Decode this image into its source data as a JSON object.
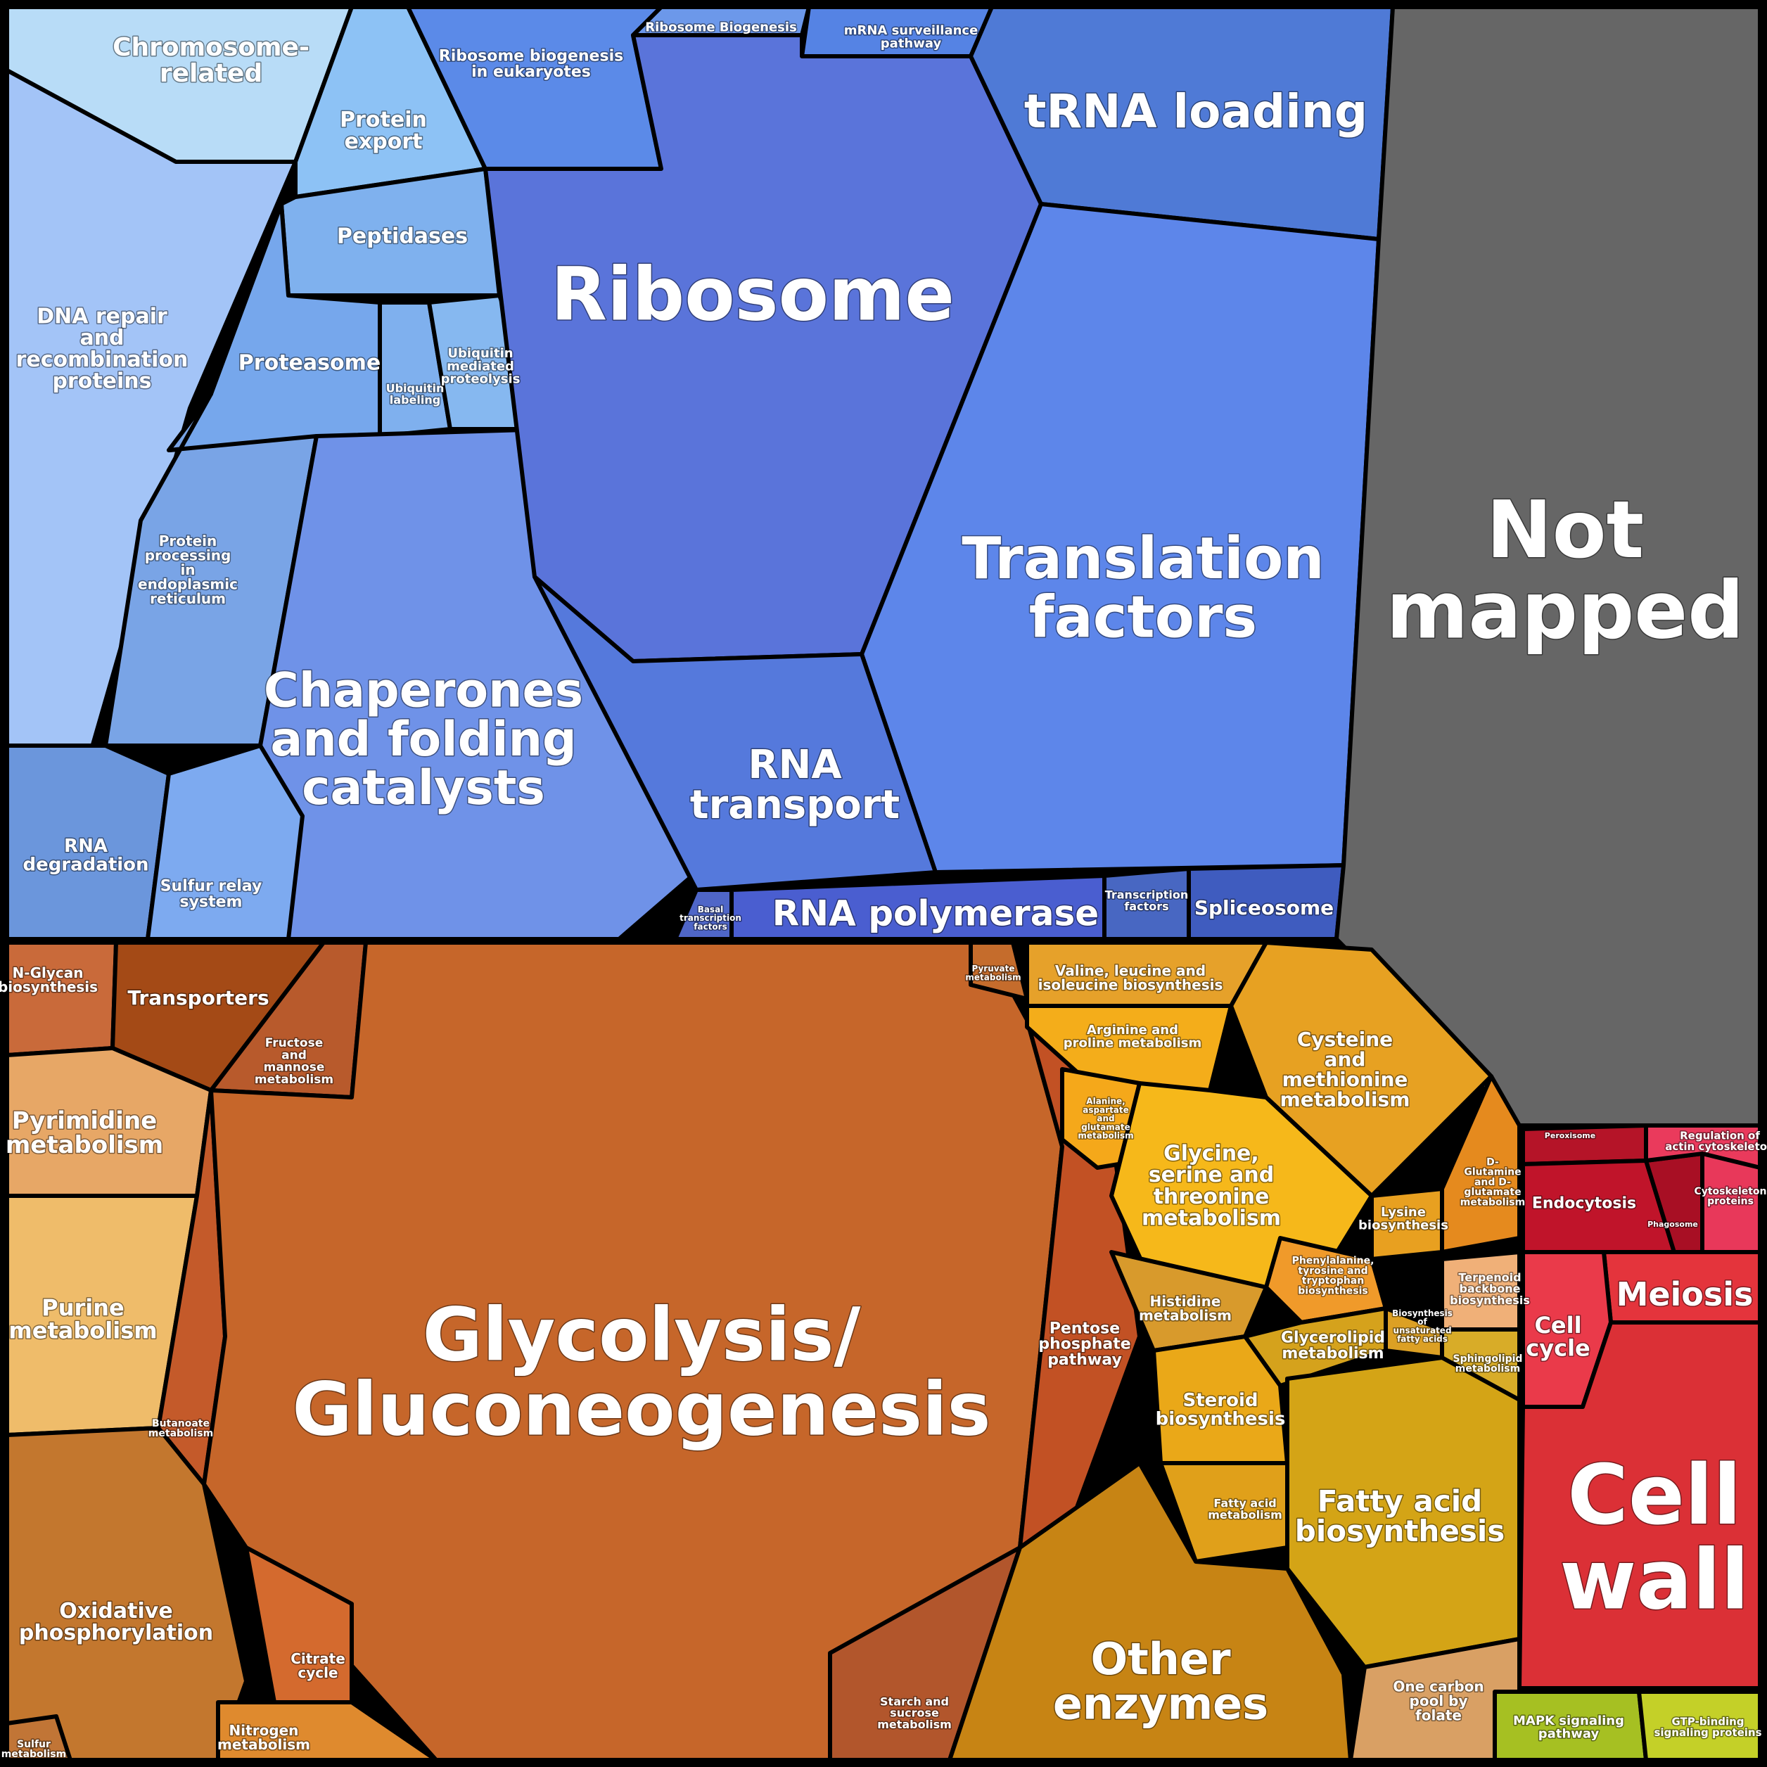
{
  "colors": {
    "genetic_information": "#5b7fe6",
    "cellular_processes_structural": "#8fb6f4",
    "metabolism_carbohydrate": "#c96a2c",
    "metabolism_amino_acid": "#f0a624",
    "metabolism_lipid": "#d9a51e",
    "cell_structure": "#dd3a42",
    "signaling": "#a8c02a",
    "not_mapped": "#666666",
    "border": "#000000"
  },
  "regions": [
    {
      "id": "chromosome",
      "label": "Chromosome-\nrelated",
      "color": "#b8dcf7"
    },
    {
      "id": "dna-repair",
      "label": "DNA repair\nand\nrecombination\nproteins",
      "color": "#a3c4f7"
    },
    {
      "id": "protein-export",
      "label": "Protein\nexport",
      "color": "#8dc2f5"
    },
    {
      "id": "peptidases",
      "label": "Peptidases",
      "color": "#7fb1ee"
    },
    {
      "id": "proteasome",
      "label": "Proteasome",
      "color": "#76a7ec"
    },
    {
      "id": "ubiquitin-labeling",
      "label": "Ubiquitin\nlabeling",
      "color": "#7fb0ee"
    },
    {
      "id": "ubiquitin-proteolysis",
      "label": "Ubiquitin\nmediated\nproteolysis",
      "color": "#86b8f0"
    },
    {
      "id": "protein-processing",
      "label": "Protein\nprocessing\nin\nendoplasmic\nreticulum",
      "color": "#79a4e6"
    },
    {
      "id": "chaperones",
      "label": "Chaperones\nand folding\ncatalysts",
      "color": "#6f92e8"
    },
    {
      "id": "rna-degradation",
      "label": "RNA\ndegradation",
      "color": "#6b96dc"
    },
    {
      "id": "sulfur-relay",
      "label": "Sulfur relay\nsystem",
      "color": "#7daaf0"
    },
    {
      "id": "ribosome-biogenesis-euk",
      "label": "Ribosome biogenesis\nin eukaryotes",
      "color": "#5b8ae8"
    },
    {
      "id": "ribosome-biogenesis",
      "label": "Ribosome Biogenesis",
      "color": "#6c98ea"
    },
    {
      "id": "mrna-surveillance",
      "label": "mRNA surveillance\npathway",
      "color": "#5583e4"
    },
    {
      "id": "ribosome",
      "label": "Ribosome",
      "color": "#5a74da"
    },
    {
      "id": "trna-loading",
      "label": "tRNA loading",
      "color": "#4f7ad6"
    },
    {
      "id": "translation-factors",
      "label": "Translation\nfactors",
      "color": "#5d86ea"
    },
    {
      "id": "rna-transport",
      "label": "RNA\ntransport",
      "color": "#5579dc"
    },
    {
      "id": "basal-tf",
      "label": "Basal\ntranscription\nfactors",
      "color": "#4f66c8"
    },
    {
      "id": "rna-polymerase",
      "label": "RNA polymerase",
      "color": "#4a5ed0"
    },
    {
      "id": "transcription-factors",
      "label": "Transcription\nfactors",
      "color": "#4867c2"
    },
    {
      "id": "spliceosome",
      "label": "Spliceosome",
      "color": "#3f5cbf"
    },
    {
      "id": "not-mapped",
      "label": "Not\nmapped",
      "color": "#666666"
    },
    {
      "id": "n-glycan",
      "label": "N-Glycan\nbiosynthesis",
      "color": "#c96a3a"
    },
    {
      "id": "transporters",
      "label": "Transporters",
      "color": "#a44a16"
    },
    {
      "id": "fructose",
      "label": "Fructose\nand\nmannose\nmetabolism",
      "color": "#b85a2c"
    },
    {
      "id": "pyrimidine",
      "label": "Pyrimidine\nmetabolism",
      "color": "#e7a766"
    },
    {
      "id": "purine",
      "label": "Purine\nmetabolism",
      "color": "#efbc6a"
    },
    {
      "id": "butanoate",
      "label": "Butanoate\nmetabolism",
      "color": "#c45a2a"
    },
    {
      "id": "oxidative",
      "label": "Oxidative\nphosphorylation",
      "color": "#c3772e"
    },
    {
      "id": "sulfur-metabolism",
      "label": "Sulfur\nmetabolism",
      "color": "#c17536"
    },
    {
      "id": "glycolysis",
      "label": "Glycolysis/\nGluconeogenesis",
      "color": "#c6662a"
    },
    {
      "id": "citrate",
      "label": "Citrate\ncycle",
      "color": "#d46a2e"
    },
    {
      "id": "nitrogen",
      "label": "Nitrogen\nmetabolism",
      "color": "#df8a2e"
    },
    {
      "id": "starch",
      "label": "Starch and\nsucrose\nmetabolism",
      "color": "#b2562c"
    },
    {
      "id": "pyruvate",
      "label": "Pyruvate\nmetabolism",
      "color": "#c56c2c"
    },
    {
      "id": "pentose",
      "label": "Pentose\nphosphate\npathway",
      "color": "#c25124"
    },
    {
      "id": "valine",
      "label": "Valine, leucine and\nisoleucine biosynthesis",
      "color": "#e6a12a"
    },
    {
      "id": "arginine",
      "label": "Arginine and\nproline metabolism",
      "color": "#f4ad1a"
    },
    {
      "id": "alanine",
      "label": "Alanine,\naspartate\nand\nglutamate\nmetabolism",
      "color": "#f5a81a"
    },
    {
      "id": "cysteine",
      "label": "Cysteine\nand\nmethionine\nmetabolism",
      "color": "#e7a122"
    },
    {
      "id": "glycine",
      "label": "Glycine,\nserine and\nthreonine\nmetabolism",
      "color": "#f6b81a"
    },
    {
      "id": "lysine",
      "label": "Lysine\nbiosynthesis",
      "color": "#e8a020"
    },
    {
      "id": "d-glutamine",
      "label": "D-\nGlutamine\nand D-\nglutamate\nmetabolism",
      "color": "#e58a1e"
    },
    {
      "id": "phenylalanine",
      "label": "Phenylalanine,\ntyrosine and\ntryptophan\nbiosynthesis",
      "color": "#f09a2a"
    },
    {
      "id": "histidine",
      "label": "Histidine\nmetabolism",
      "color": "#d89a2c"
    },
    {
      "id": "terpenoid",
      "label": "Terpenoid\nbackbone\nbiosynthesis",
      "color": "#f0b078"
    },
    {
      "id": "unsaturated",
      "label": "Biosynthesis\nof\nunsaturated\nfatty acids",
      "color": "#dca024"
    },
    {
      "id": "glycerolipid",
      "label": "Glycerolipid\nmetabolism",
      "color": "#d5a21c"
    },
    {
      "id": "sphingolipid",
      "label": "Sphingolipid\nmetabolism",
      "color": "#d8ac28"
    },
    {
      "id": "steroid",
      "label": "Steroid\nbiosynthesis",
      "color": "#eaa818"
    },
    {
      "id": "fatty-acid-metabolism",
      "label": "Fatty acid\nmetabolism",
      "color": "#e0a01a"
    },
    {
      "id": "fatty-acid-biosynthesis",
      "label": "Fatty acid\nbiosynthesis",
      "color": "#d4a416"
    },
    {
      "id": "other-enzymes",
      "label": "Other\nenzymes",
      "color": "#c78414"
    },
    {
      "id": "one-carbon",
      "label": "One carbon\npool by\nfolate",
      "color": "#d9a064"
    },
    {
      "id": "peroxisome",
      "label": "Peroxisome",
      "color": "#b51428"
    },
    {
      "id": "endocytosis",
      "label": "Endocytosis",
      "color": "#c0142a"
    },
    {
      "id": "phagosome",
      "label": "Phagosome",
      "color": "#a80f24"
    },
    {
      "id": "actin",
      "label": "Regulation of\nactin cytoskeleton",
      "color": "#ea3a5c"
    },
    {
      "id": "cytoskeleton",
      "label": "Cytoskeleton\nproteins",
      "color": "#e8385a"
    },
    {
      "id": "meiosis",
      "label": "Meiosis",
      "color": "#e4343c"
    },
    {
      "id": "cell-cycle",
      "label": "Cell\ncycle",
      "color": "#ea3a4a"
    },
    {
      "id": "cell-wall",
      "label": "Cell\nwall",
      "color": "#db3036"
    },
    {
      "id": "mapk",
      "label": "MAPK signaling\npathway",
      "color": "#a6c022"
    },
    {
      "id": "gtp-binding",
      "label": "GTP-binding\nsignaling proteins",
      "color": "#c4d028"
    }
  ]
}
